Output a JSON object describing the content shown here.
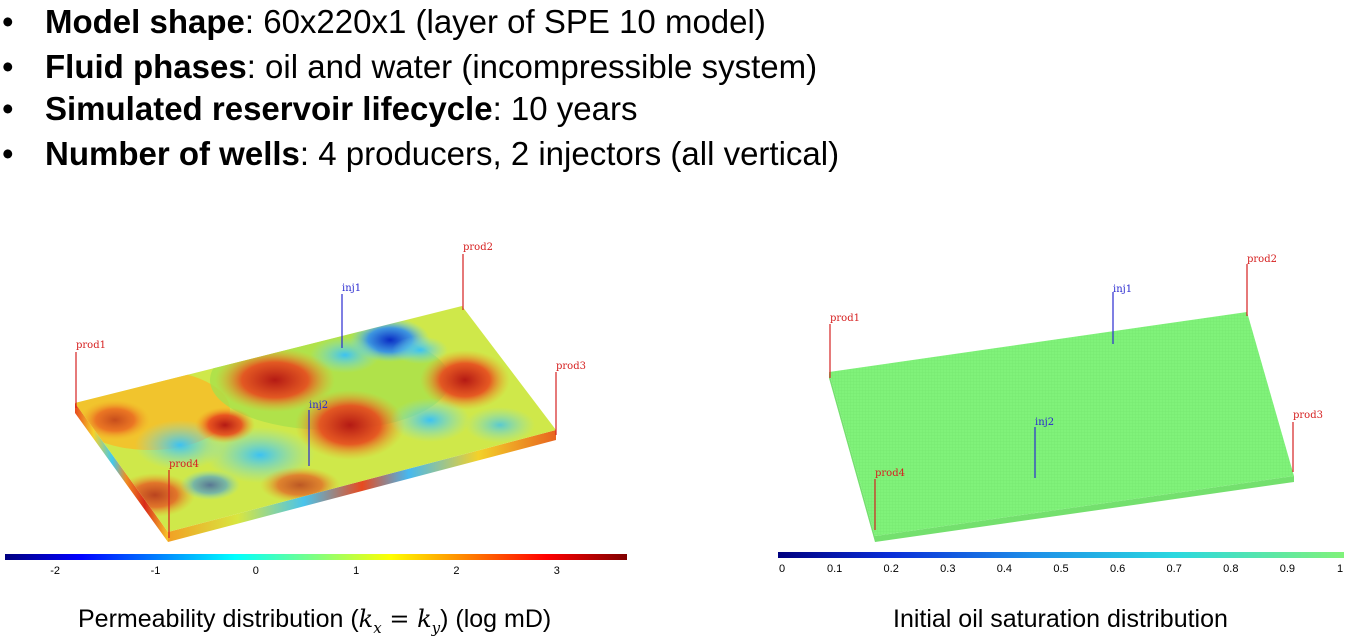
{
  "bullets": [
    {
      "key": "Model shape",
      "text": ": 60x220x1 (layer of SPE 10 model)"
    },
    {
      "key": "Fluid phases",
      "text": ": oil and water (incompressible system)"
    },
    {
      "key": "Simulated reservoir lifecycle",
      "text": ": 10 years"
    },
    {
      "key": "Number of wells",
      "text": ": 4 producers, 2 injectors (all vertical)"
    }
  ],
  "bullet_glyph": "•",
  "left_figure": {
    "caption_prefix": "Permeability distribution (",
    "caption_math_kx": "k",
    "caption_math_sub_x": "x",
    "caption_math_eq": " = ",
    "caption_math_ky": "k",
    "caption_math_sub_y": "y",
    "caption_suffix": ") (log mD)",
    "wells": {
      "prod1": "prod1",
      "prod2": "prod2",
      "prod3": "prod3",
      "prod4": "prod4",
      "inj1": "inj1",
      "inj2": "inj2"
    },
    "colorbar_ticks": [
      "-2",
      "-1",
      "0",
      "1",
      "2",
      "3"
    ],
    "colorbar_min": -2.5,
    "colorbar_max": 3.7
  },
  "right_figure": {
    "caption": "Initial oil saturation distribution",
    "wells": {
      "prod1": "prod1",
      "prod2": "prod2",
      "prod3": "prod3",
      "prod4": "prod4",
      "inj1": "inj1",
      "inj2": "inj2"
    },
    "colorbar_ticks": [
      "0",
      "0.1",
      "0.2",
      "0.3",
      "0.4",
      "0.5",
      "0.6",
      "0.7",
      "0.8",
      "0.9",
      "1"
    ],
    "colorbar_min": 0,
    "colorbar_max": 1,
    "fill_color": "#80f27a"
  },
  "colors": {
    "producer": "#d62020",
    "injector": "#2a2ad0"
  }
}
